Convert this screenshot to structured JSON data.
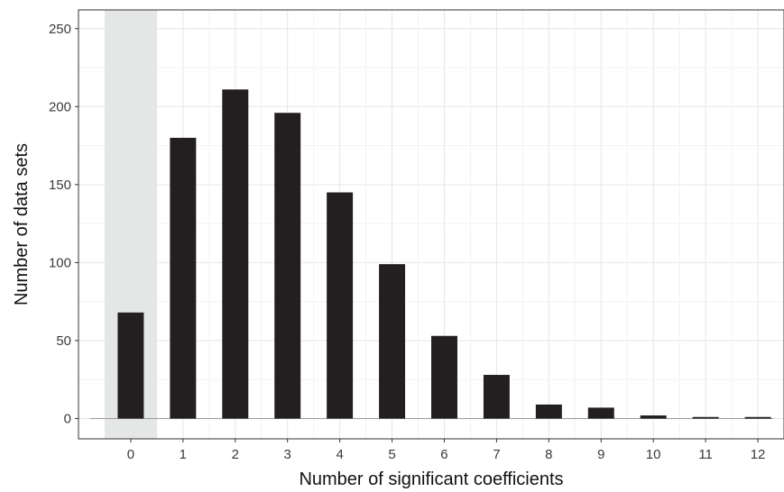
{
  "chart_data": {
    "type": "bar",
    "categories": [
      "0",
      "1",
      "2",
      "3",
      "4",
      "5",
      "6",
      "7",
      "8",
      "9",
      "10",
      "11",
      "12"
    ],
    "values": [
      68,
      180,
      211,
      196,
      145,
      99,
      53,
      28,
      9,
      7,
      2,
      1,
      1
    ],
    "title": "",
    "xlabel": "Number of significant coefficients",
    "ylabel": "Number of data sets",
    "ylim": [
      -13,
      262
    ],
    "yticks": [
      "0",
      "50",
      "100",
      "150",
      "200",
      "250"
    ],
    "grid": true,
    "highlighted_category": "0",
    "colors": {
      "bar": "#231f20",
      "highlight": "#e5e7e6",
      "grid_major": "#e6e6e6",
      "grid_minor": "#f2f2f2",
      "border": "#333333"
    }
  }
}
